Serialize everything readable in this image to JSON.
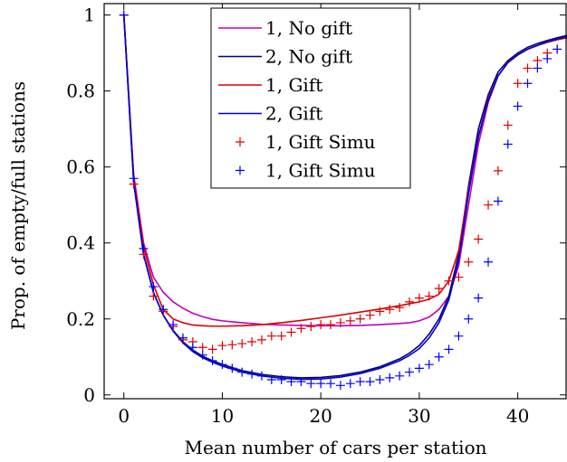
{
  "chart_data": {
    "type": "line",
    "title": "",
    "xlabel": "Mean number of cars per station",
    "ylabel": "Prop. of empty/full stations",
    "xlim": [
      -2,
      45
    ],
    "ylim": [
      -0.01,
      1.03
    ],
    "xticks": [
      0,
      10,
      20,
      30,
      40
    ],
    "yticks": [
      0,
      0.2,
      0.4,
      0.6,
      0.8,
      1
    ],
    "ytick_labels": [
      "0",
      "0.2",
      "0.4",
      "0.6",
      "0.8",
      "1"
    ],
    "grid": false,
    "legend_position": "top-center",
    "series": [
      {
        "name": "1, No gift",
        "style": "line",
        "color": "#bf00bf",
        "x": [
          0,
          1,
          2,
          3,
          4,
          5,
          6,
          7,
          8,
          9,
          10,
          12,
          14,
          16,
          18,
          20,
          22,
          24,
          26,
          28,
          29,
          30,
          31,
          32,
          33,
          34,
          35,
          36,
          37,
          38,
          39,
          40,
          41,
          42,
          43,
          44,
          45
        ],
        "y": [
          1.0,
          0.58,
          0.4,
          0.31,
          0.27,
          0.245,
          0.228,
          0.215,
          0.206,
          0.199,
          0.195,
          0.19,
          0.186,
          0.184,
          0.183,
          0.182,
          0.182,
          0.183,
          0.185,
          0.188,
          0.19,
          0.195,
          0.205,
          0.225,
          0.26,
          0.34,
          0.5,
          0.66,
          0.77,
          0.84,
          0.875,
          0.895,
          0.91,
          0.92,
          0.93,
          0.937,
          0.942
        ]
      },
      {
        "name": "2, No gift",
        "style": "line",
        "color": "#00007f",
        "x": [
          0,
          1,
          2,
          3,
          4,
          5,
          6,
          7,
          8,
          9,
          10,
          12,
          14,
          16,
          18,
          20,
          22,
          24,
          26,
          28,
          29,
          30,
          31,
          32,
          33,
          34,
          35,
          36,
          37,
          38,
          39,
          40,
          41,
          42,
          43,
          44,
          45
        ],
        "y": [
          1.0,
          0.56,
          0.37,
          0.27,
          0.21,
          0.17,
          0.14,
          0.118,
          0.102,
          0.09,
          0.08,
          0.064,
          0.054,
          0.048,
          0.045,
          0.046,
          0.051,
          0.06,
          0.074,
          0.095,
          0.11,
          0.13,
          0.16,
          0.2,
          0.26,
          0.37,
          0.55,
          0.7,
          0.79,
          0.85,
          0.88,
          0.9,
          0.915,
          0.925,
          0.933,
          0.94,
          0.946
        ]
      },
      {
        "name": "1, Gift",
        "style": "line",
        "color": "#e00000",
        "x": [
          0,
          1,
          2,
          3,
          4,
          5,
          6,
          7,
          8,
          9,
          10,
          12,
          14,
          16,
          18,
          20,
          22,
          24,
          26,
          28,
          29,
          30,
          31,
          32,
          33,
          34,
          35,
          36,
          37,
          38,
          39,
          40,
          41,
          42,
          43,
          44,
          45
        ],
        "y": [
          1.0,
          0.57,
          0.39,
          0.29,
          0.225,
          0.2,
          0.19,
          0.184,
          0.182,
          0.181,
          0.181,
          0.182,
          0.185,
          0.19,
          0.196,
          0.203,
          0.21,
          0.218,
          0.226,
          0.235,
          0.24,
          0.245,
          0.252,
          0.265,
          0.3,
          0.38,
          0.54,
          0.68,
          0.78,
          0.84,
          0.875,
          0.895,
          0.91,
          0.92,
          0.928,
          0.935,
          0.94
        ]
      },
      {
        "name": "2, Gift",
        "style": "line",
        "color": "#0000d0",
        "x": [
          0,
          1,
          2,
          3,
          4,
          5,
          6,
          7,
          8,
          9,
          10,
          12,
          14,
          16,
          18,
          20,
          22,
          24,
          26,
          28,
          29,
          30,
          31,
          32,
          33,
          34,
          35,
          36,
          37,
          38,
          39,
          40,
          41,
          42,
          43,
          44,
          45
        ],
        "y": [
          1.0,
          0.56,
          0.37,
          0.27,
          0.21,
          0.168,
          0.137,
          0.114,
          0.098,
          0.086,
          0.076,
          0.06,
          0.05,
          0.044,
          0.041,
          0.042,
          0.047,
          0.056,
          0.07,
          0.09,
          0.104,
          0.122,
          0.15,
          0.19,
          0.25,
          0.355,
          0.53,
          0.68,
          0.775,
          0.84,
          0.875,
          0.895,
          0.91,
          0.92,
          0.93,
          0.937,
          0.943
        ]
      },
      {
        "name": "1, Gift Simu",
        "style": "marker",
        "color": "#e00000",
        "x": [
          0,
          1,
          2,
          3,
          4,
          5,
          6,
          7,
          8,
          9,
          10,
          11,
          12,
          13,
          14,
          15,
          16,
          17,
          18,
          19,
          20,
          21,
          22,
          23,
          24,
          25,
          26,
          27,
          28,
          29,
          30,
          31,
          32,
          33,
          34,
          35,
          36,
          37,
          38,
          39,
          40,
          41,
          42,
          43,
          44
        ],
        "y": [
          1.0,
          0.555,
          0.37,
          0.26,
          0.22,
          0.18,
          0.145,
          0.14,
          0.125,
          0.12,
          0.13,
          0.132,
          0.135,
          0.14,
          0.145,
          0.155,
          0.155,
          0.165,
          0.175,
          0.18,
          0.185,
          0.185,
          0.19,
          0.195,
          0.2,
          0.21,
          0.22,
          0.225,
          0.23,
          0.245,
          0.255,
          0.26,
          0.28,
          0.3,
          0.31,
          0.35,
          0.41,
          0.5,
          0.59,
          0.71,
          0.82,
          0.86,
          0.88,
          0.9,
          0.91
        ]
      },
      {
        "name": "1, Gift Simu",
        "style": "marker",
        "color": "#0000ff",
        "x": [
          0,
          1,
          2,
          3,
          4,
          5,
          6,
          7,
          8,
          9,
          10,
          11,
          12,
          13,
          14,
          15,
          16,
          17,
          18,
          19,
          20,
          21,
          22,
          23,
          24,
          25,
          26,
          27,
          28,
          29,
          30,
          31,
          32,
          33,
          34,
          35,
          36,
          37,
          38,
          39,
          40,
          41,
          42,
          43,
          44
        ],
        "y": [
          1.0,
          0.57,
          0.385,
          0.285,
          0.225,
          0.185,
          0.15,
          0.125,
          0.105,
          0.09,
          0.08,
          0.07,
          0.06,
          0.055,
          0.05,
          0.04,
          0.04,
          0.035,
          0.035,
          0.03,
          0.03,
          0.03,
          0.025,
          0.03,
          0.035,
          0.035,
          0.04,
          0.045,
          0.05,
          0.06,
          0.07,
          0.08,
          0.1,
          0.12,
          0.155,
          0.2,
          0.255,
          0.35,
          0.51,
          0.66,
          0.76,
          0.82,
          0.86,
          0.885,
          0.91
        ]
      }
    ]
  }
}
